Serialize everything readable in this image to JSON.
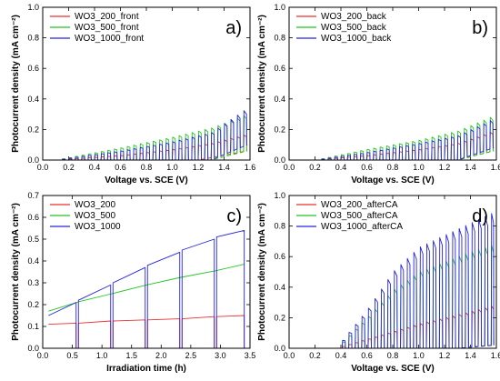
{
  "chart_data": [
    {
      "panel": "a)",
      "type": "line",
      "xlabel": "Voltage vs. SCE (V)",
      "ylabel": "Photocurrent density (mA cm⁻²)",
      "xlim": [
        0.0,
        1.6
      ],
      "ylim": [
        0.0,
        1.0
      ],
      "xticks": [
        "0.0",
        "0.2",
        "0.4",
        "0.6",
        "0.8",
        "1.0",
        "1.2",
        "1.4",
        "1.6"
      ],
      "yticks": [
        "0.0",
        "0.2",
        "0.4",
        "0.6",
        "0.8",
        "1.0"
      ],
      "legend_position": "top-left",
      "chopped": {
        "x_start": 0.1,
        "x_end": 1.58,
        "period": 0.05
      },
      "series": [
        {
          "name": "WO3_200_front",
          "color": "#e8322d",
          "on": [
            [
              0.1,
              0.0
            ],
            [
              0.6,
              0.03
            ],
            [
              1.0,
              0.07
            ],
            [
              1.3,
              0.11
            ],
            [
              1.58,
              0.17
            ]
          ],
          "dark": [
            [
              0.0,
              0.0
            ],
            [
              1.2,
              0.0
            ],
            [
              1.58,
              0.06
            ]
          ]
        },
        {
          "name": "WO3_500_front",
          "color": "#22c422",
          "on": [
            [
              0.1,
              0.0
            ],
            [
              0.6,
              0.08
            ],
            [
              1.0,
              0.15
            ],
            [
              1.3,
              0.21
            ],
            [
              1.58,
              0.3
            ]
          ],
          "dark": [
            [
              0.0,
              0.0
            ],
            [
              1.3,
              0.0
            ],
            [
              1.58,
              0.06
            ]
          ]
        },
        {
          "name": "WO3_1000_front",
          "color": "#2424d8",
          "on": [
            [
              0.1,
              0.0
            ],
            [
              0.6,
              0.06
            ],
            [
              1.0,
              0.12
            ],
            [
              1.3,
              0.18
            ],
            [
              1.58,
              0.34
            ]
          ],
          "dark": [
            [
              0.0,
              0.0
            ],
            [
              1.3,
              0.0
            ],
            [
              1.58,
              0.1
            ]
          ]
        }
      ]
    },
    {
      "panel": "b)",
      "type": "line",
      "xlabel": "Voltage vs. SCE (V)",
      "ylabel": "Photocurrent density (mA cm⁻²)",
      "xlim": [
        0.0,
        1.6
      ],
      "ylim": [
        0.0,
        1.0
      ],
      "xticks": [
        "0.0",
        "0.2",
        "0.4",
        "0.6",
        "0.8",
        "1.0",
        "1.2",
        "1.4",
        "1.6"
      ],
      "yticks": [
        "0.0",
        "0.2",
        "0.4",
        "0.6",
        "0.8",
        "1.0"
      ],
      "legend_position": "top-left",
      "chopped": {
        "x_start": 0.2,
        "x_end": 1.58,
        "period": 0.05
      },
      "series": [
        {
          "name": "WO3_200_back",
          "color": "#e8322d",
          "on": [
            [
              0.2,
              0.0
            ],
            [
              0.6,
              0.03
            ],
            [
              1.0,
              0.07
            ],
            [
              1.3,
              0.11
            ],
            [
              1.58,
              0.19
            ]
          ],
          "dark": [
            [
              0.0,
              0.0
            ],
            [
              1.3,
              0.0
            ],
            [
              1.58,
              0.06
            ]
          ]
        },
        {
          "name": "WO3_500_back",
          "color": "#22c422",
          "on": [
            [
              0.2,
              0.0
            ],
            [
              0.6,
              0.07
            ],
            [
              1.0,
              0.13
            ],
            [
              1.3,
              0.19
            ],
            [
              1.58,
              0.29
            ]
          ],
          "dark": [
            [
              0.0,
              0.0
            ],
            [
              1.3,
              0.0
            ],
            [
              1.58,
              0.06
            ]
          ]
        },
        {
          "name": "WO3_1000_back",
          "color": "#2424d8",
          "on": [
            [
              0.2,
              0.0
            ],
            [
              0.6,
              0.05
            ],
            [
              1.0,
              0.11
            ],
            [
              1.3,
              0.16
            ],
            [
              1.58,
              0.27
            ]
          ],
          "dark": [
            [
              0.0,
              0.0
            ],
            [
              1.3,
              0.0
            ],
            [
              1.58,
              0.08
            ]
          ]
        }
      ]
    },
    {
      "panel": "c)",
      "type": "line",
      "xlabel": "Irradiation time (h)",
      "ylabel": "Photocurrent density (mA cm⁻²)",
      "xlim": [
        0.0,
        3.6
      ],
      "ylim": [
        0.0,
        0.7
      ],
      "xticks": [
        "0.0",
        "0.5",
        "1.0",
        "1.5",
        "2.0",
        "2.5",
        "3.0",
        "3.5"
      ],
      "yticks": [
        "0.0",
        "0.1",
        "0.2",
        "0.3",
        "0.4",
        "0.5",
        "0.6",
        "0.7"
      ],
      "legend_position": "top-left",
      "series": [
        {
          "name": "WO3_200",
          "color": "#e8322d",
          "dips": [
            0.6,
            1.2,
            1.8,
            2.4,
            3.0
          ],
          "dip_width": 0.04,
          "segments": [
            [
              0.1,
              0.11,
              0.58,
              0.115
            ],
            [
              0.62,
              0.115,
              1.18,
              0.125
            ],
            [
              1.22,
              0.125,
              1.78,
              0.13
            ],
            [
              1.82,
              0.13,
              2.38,
              0.135
            ],
            [
              2.42,
              0.135,
              2.98,
              0.145
            ],
            [
              3.02,
              0.145,
              3.5,
              0.15
            ]
          ]
        },
        {
          "name": "WO3_500",
          "color": "#22c422",
          "dips": [],
          "dip_width": 0.04,
          "segments": [
            [
              0.1,
              0.17,
              0.65,
              0.215
            ],
            [
              0.65,
              0.215,
              1.2,
              0.25
            ],
            [
              1.2,
              0.25,
              1.8,
              0.29
            ],
            [
              1.8,
              0.29,
              2.4,
              0.325
            ],
            [
              2.4,
              0.325,
              3.0,
              0.355
            ],
            [
              3.0,
              0.355,
              3.5,
              0.385
            ]
          ]
        },
        {
          "name": "WO3_1000",
          "color": "#2424d8",
          "dips": [
            0.6,
            1.2,
            1.8,
            2.4,
            3.0
          ],
          "dip_width": 0.04,
          "segments": [
            [
              0.1,
              0.15,
              0.58,
              0.21
            ],
            [
              0.62,
              0.22,
              1.18,
              0.29
            ],
            [
              1.22,
              0.3,
              1.78,
              0.37
            ],
            [
              1.82,
              0.38,
              2.38,
              0.44
            ],
            [
              2.42,
              0.45,
              2.98,
              0.5
            ],
            [
              3.02,
              0.51,
              3.5,
              0.54
            ]
          ]
        }
      ]
    },
    {
      "panel": "d)",
      "type": "line",
      "xlabel": "Voltage vs. SCE (V)",
      "ylabel": "Photocurrent density (mA cm⁻²)",
      "xlim": [
        0.0,
        1.6
      ],
      "ylim": [
        0.0,
        1.0
      ],
      "xticks": [
        "0.0",
        "0.2",
        "0.4",
        "0.6",
        "0.8",
        "1.0",
        "1.2",
        "1.4",
        "1.6"
      ],
      "yticks": [
        "0.0",
        "0.2",
        "0.4",
        "0.6",
        "0.8",
        "1.0"
      ],
      "legend_position": "top-left",
      "chopped": {
        "x_start": 0.36,
        "x_end": 1.58,
        "period": 0.05
      },
      "series": [
        {
          "name": "WO3_200_afterCA",
          "color": "#e8322d",
          "on": [
            [
              0.36,
              0.0
            ],
            [
              0.6,
              0.06
            ],
            [
              1.0,
              0.16
            ],
            [
              1.3,
              0.22
            ],
            [
              1.58,
              0.28
            ]
          ],
          "dark": [
            [
              0.0,
              0.0
            ],
            [
              1.3,
              0.0
            ],
            [
              1.58,
              0.02
            ]
          ]
        },
        {
          "name": "WO3_500_afterCA",
          "color": "#22c422",
          "on": [
            [
              0.36,
              0.0
            ],
            [
              0.6,
              0.2
            ],
            [
              0.8,
              0.38
            ],
            [
              1.0,
              0.5
            ],
            [
              1.3,
              0.6
            ],
            [
              1.58,
              0.68
            ]
          ],
          "dark": [
            [
              0.0,
              0.0
            ],
            [
              1.3,
              0.0
            ],
            [
              1.58,
              0.02
            ]
          ]
        },
        {
          "name": "WO3_1000_afterCA",
          "color": "#2424d8",
          "on": [
            [
              0.36,
              0.0
            ],
            [
              0.6,
              0.25
            ],
            [
              0.8,
              0.5
            ],
            [
              1.0,
              0.66
            ],
            [
              1.3,
              0.78
            ],
            [
              1.58,
              0.89
            ]
          ],
          "dark": [
            [
              0.0,
              0.0
            ],
            [
              1.3,
              0.0
            ],
            [
              1.58,
              0.02
            ]
          ]
        }
      ]
    }
  ]
}
